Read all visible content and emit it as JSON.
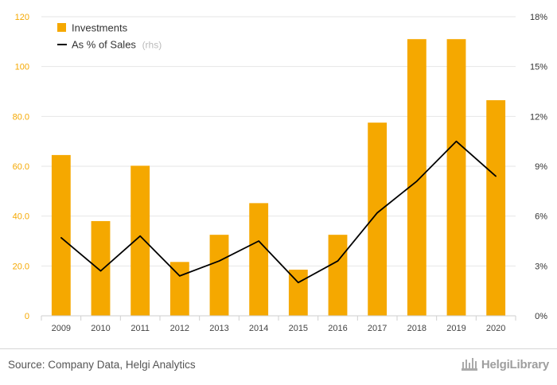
{
  "chart_data": {
    "type": "bar",
    "categories": [
      "2009",
      "2010",
      "2011",
      "2012",
      "2013",
      "2014",
      "2015",
      "2016",
      "2017",
      "2018",
      "2019",
      "2020"
    ],
    "series": [
      {
        "name": "Investments",
        "type": "bar",
        "axis": "left",
        "color": "#f5a800",
        "values": [
          64.5,
          38.0,
          60.2,
          21.6,
          32.5,
          45.2,
          18.5,
          32.5,
          77.5,
          111.0,
          111.0,
          86.5
        ]
      },
      {
        "name": "As % of Sales",
        "type": "line",
        "axis": "right",
        "color": "#000000",
        "values": [
          4.7,
          2.7,
          4.8,
          2.4,
          3.3,
          4.5,
          2.0,
          3.3,
          6.2,
          8.1,
          10.5,
          8.4
        ]
      }
    ],
    "legend": {
      "position": "top-left",
      "items": [
        {
          "label": "Investments",
          "suffix": ""
        },
        {
          "label": "As % of Sales",
          "suffix": "(rhs)"
        }
      ]
    },
    "y_left": {
      "ylim": [
        0,
        120
      ],
      "ticks": [
        0,
        20,
        40,
        60,
        80,
        100,
        120
      ],
      "tick_labels": [
        "0",
        "20.0",
        "40.0",
        "60.0",
        "80.0",
        "100",
        "120"
      ],
      "label_color": "#f5a800"
    },
    "y_right": {
      "ylim": [
        0,
        18
      ],
      "ticks": [
        0,
        3,
        6,
        9,
        12,
        15,
        18
      ],
      "tick_labels": [
        "0%",
        "3%",
        "6%",
        "9%",
        "12%",
        "15%",
        "18%"
      ]
    },
    "grid": true
  },
  "footer": {
    "source": "Source: Company Data, Helgi Analytics",
    "brand": "HelgiLibrary"
  }
}
